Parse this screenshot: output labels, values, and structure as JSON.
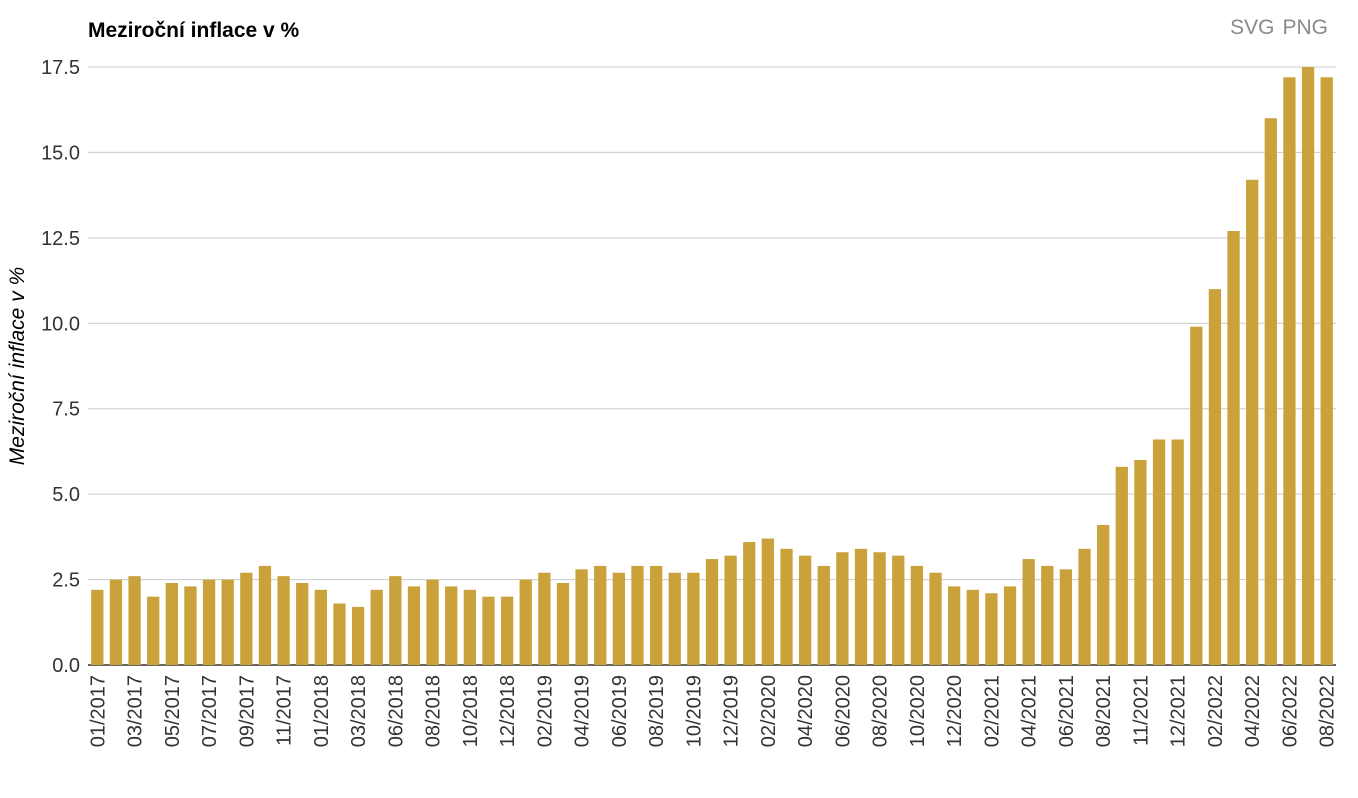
{
  "header": {
    "export_svg": "SVG",
    "export_png": "PNG"
  },
  "chart_data": {
    "type": "bar",
    "title": "Meziroční inflace v %",
    "xlabel": "",
    "ylabel": "Meziroční inflace v %",
    "ylim": [
      0,
      17.5
    ],
    "yticks": [
      "0.0",
      "2.5",
      "5.0",
      "7.5",
      "10.0",
      "12.5",
      "15.0",
      "17.5"
    ],
    "grid": true,
    "color": "#c9a23c",
    "categories": [
      "01/2017",
      "02/2017",
      "03/2017",
      "04/2017",
      "05/2017",
      "06/2017",
      "07/2017",
      "08/2017",
      "09/2017",
      "10/2017",
      "11/2017",
      "12/2017",
      "01/2018",
      "02/2018",
      "03/2018",
      "04/2018",
      "06/2018",
      "07/2018",
      "08/2018",
      "09/2018",
      "10/2018",
      "11/2018",
      "12/2018",
      "01/2019",
      "02/2019",
      "03/2019",
      "04/2019",
      "05/2019",
      "06/2019",
      "07/2019",
      "08/2019",
      "09/2019",
      "10/2019",
      "11/2019",
      "12/2019",
      "01/2020",
      "02/2020",
      "03/2020",
      "04/2020",
      "05/2020",
      "06/2020",
      "07/2020",
      "08/2020",
      "09/2020",
      "10/2020",
      "11/2020",
      "12/2020",
      "01/2021",
      "02/2021",
      "03/2021",
      "04/2021",
      "05/2021",
      "06/2021",
      "07/2021",
      "08/2021",
      "09/2021",
      "11/2021",
      "10/2021",
      "12/2021",
      "01/2022",
      "02/2022",
      "03/2022",
      "04/2022",
      "05/2022",
      "06/2022",
      "07/2022",
      "08/2022"
    ],
    "shown_labels": [
      "01/2017",
      "03/2017",
      "05/2017",
      "07/2017",
      "09/2017",
      "11/2017",
      "01/2018",
      "03/2018",
      "06/2018",
      "08/2018",
      "10/2018",
      "12/2018",
      "02/2019",
      "04/2019",
      "06/2019",
      "08/2019",
      "10/2019",
      "12/2019",
      "02/2020",
      "04/2020",
      "06/2020",
      "08/2020",
      "10/2020",
      "12/2020",
      "02/2021",
      "04/2021",
      "06/2021",
      "08/2021",
      "11/2021",
      "12/2021",
      "02/2022",
      "04/2022",
      "06/2022",
      "08/2022"
    ],
    "values": [
      2.2,
      2.5,
      2.6,
      2.0,
      2.4,
      2.3,
      2.5,
      2.5,
      2.7,
      2.9,
      2.6,
      2.4,
      2.2,
      1.8,
      1.7,
      2.2,
      2.6,
      2.3,
      2.5,
      2.3,
      2.2,
      2.0,
      2.0,
      2.5,
      2.7,
      2.4,
      2.8,
      2.9,
      2.7,
      2.9,
      2.9,
      2.7,
      2.7,
      3.1,
      3.2,
      3.6,
      3.7,
      3.4,
      3.2,
      2.9,
      3.3,
      3.4,
      3.3,
      3.2,
      2.9,
      2.7,
      2.3,
      2.2,
      2.1,
      2.3,
      3.1,
      2.9,
      2.8,
      3.4,
      4.1,
      5.8,
      6.0,
      6.6,
      6.6,
      9.9,
      11.0,
      12.7,
      14.2,
      16.0,
      17.2,
      17.5,
      17.2
    ]
  }
}
